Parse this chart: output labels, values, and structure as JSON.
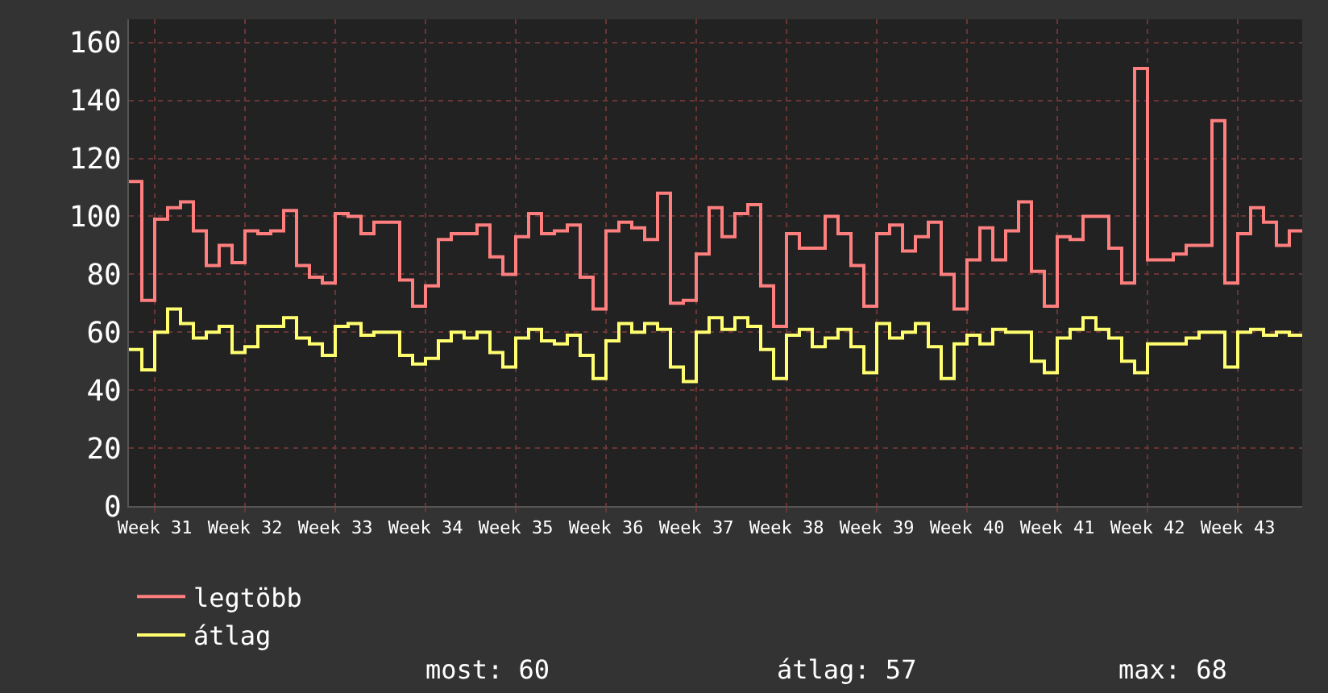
{
  "chart_data": {
    "type": "step",
    "categories": [
      null,
      null,
      "Week 31",
      null,
      null,
      null,
      null,
      null,
      null,
      "Week 32",
      null,
      null,
      null,
      null,
      null,
      null,
      "Week 33",
      null,
      null,
      null,
      null,
      null,
      null,
      "Week 34",
      null,
      null,
      null,
      null,
      null,
      null,
      "Week 35",
      null,
      null,
      null,
      null,
      null,
      null,
      "Week 36",
      null,
      null,
      null,
      null,
      null,
      null,
      "Week 37",
      null,
      null,
      null,
      null,
      null,
      null,
      "Week 38",
      null,
      null,
      null,
      null,
      null,
      null,
      "Week 39",
      null,
      null,
      null,
      null,
      null,
      null,
      "Week 40",
      null,
      null,
      null,
      null,
      null,
      null,
      "Week 41",
      null,
      null,
      null,
      null,
      null,
      null,
      "Week 42",
      null,
      null,
      null,
      null,
      null,
      null,
      "Week 43",
      null,
      null,
      null,
      null,
      null
    ],
    "series": [
      {
        "name": "legtöbb",
        "color": "#ff7f7f",
        "values": [
          112,
          71,
          99,
          103,
          105,
          95,
          83,
          90,
          84,
          95,
          94,
          95,
          102,
          83,
          79,
          77,
          101,
          100,
          94,
          98,
          98,
          78,
          69,
          76,
          92,
          94,
          94,
          97,
          86,
          80,
          93,
          101,
          94,
          95,
          97,
          79,
          68,
          95,
          98,
          96,
          92,
          108,
          70,
          71,
          87,
          103,
          93,
          101,
          104,
          76,
          62,
          94,
          89,
          89,
          100,
          94,
          83,
          69,
          94,
          97,
          88,
          93,
          98,
          80,
          68,
          85,
          96,
          85,
          95,
          105,
          81,
          69,
          93,
          92,
          100,
          100,
          89,
          77,
          151,
          85,
          85,
          87,
          90,
          90,
          133,
          77,
          94,
          103,
          98,
          90,
          95,
          95
        ]
      },
      {
        "name": "átlag",
        "color": "#ffff70",
        "values": [
          54,
          47,
          60,
          68,
          63,
          58,
          60,
          62,
          53,
          55,
          62,
          62,
          65,
          58,
          56,
          52,
          62,
          63,
          59,
          60,
          60,
          52,
          49,
          51,
          57,
          60,
          58,
          60,
          53,
          48,
          58,
          61,
          57,
          56,
          59,
          52,
          44,
          57,
          63,
          60,
          63,
          61,
          48,
          43,
          60,
          65,
          61,
          65,
          62,
          54,
          44,
          59,
          61,
          55,
          58,
          61,
          55,
          46,
          63,
          58,
          60,
          63,
          55,
          44,
          56,
          59,
          56,
          61,
          60,
          60,
          50,
          46,
          58,
          61,
          65,
          61,
          58,
          50,
          46,
          56,
          56,
          56,
          58,
          60,
          60,
          48,
          60,
          61,
          59,
          60,
          59,
          59
        ]
      }
    ],
    "ylim": [
      0,
      168
    ],
    "yticks": [
      0,
      20,
      40,
      60,
      80,
      100,
      120,
      140,
      160
    ],
    "grid": true,
    "legend": "bottom left",
    "annotations": [
      "most: 60",
      "átlag: 57",
      "max: 68"
    ]
  }
}
